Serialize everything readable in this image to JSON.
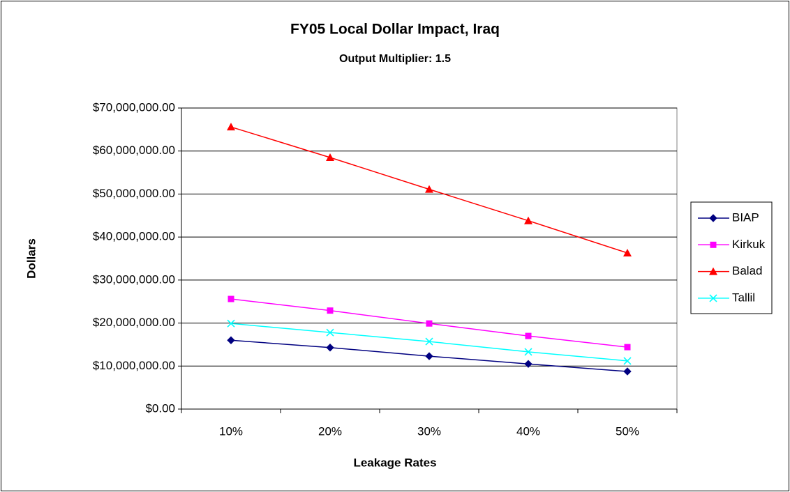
{
  "chart_data": {
    "type": "line",
    "title": "FY05 Local Dollar Impact, Iraq",
    "subtitle": "Output Multiplier: 1.5",
    "xlabel": "Leakage Rates",
    "ylabel": "Dollars",
    "categories": [
      "10%",
      "20%",
      "30%",
      "40%",
      "50%"
    ],
    "series": [
      {
        "name": "BIAP",
        "color": "#000080",
        "marker": "diamond",
        "values": [
          16000000,
          14300000,
          12300000,
          10500000,
          8750000
        ]
      },
      {
        "name": "Kirkuk",
        "color": "#ff00ff",
        "marker": "square",
        "values": [
          25600000,
          22900000,
          19900000,
          17000000,
          14400000
        ]
      },
      {
        "name": "Balad",
        "color": "#ff0000",
        "marker": "triangle",
        "values": [
          65600000,
          58500000,
          51100000,
          43800000,
          36300000
        ]
      },
      {
        "name": "Tallil",
        "color": "#00ffff",
        "marker": "x",
        "values": [
          19900000,
          17800000,
          15700000,
          13300000,
          11200000
        ]
      }
    ],
    "ylim": [
      0,
      70000000
    ],
    "yticks": [
      {
        "value": 0,
        "label": "$0.00"
      },
      {
        "value": 10000000,
        "label": "$10,000,000.00"
      },
      {
        "value": 20000000,
        "label": "$20,000,000.00"
      },
      {
        "value": 30000000,
        "label": "$30,000,000.00"
      },
      {
        "value": 40000000,
        "label": "$40,000,000.00"
      },
      {
        "value": 50000000,
        "label": "$50,000,000.00"
      },
      {
        "value": 60000000,
        "label": "$60,000,000.00"
      },
      {
        "value": 70000000,
        "label": "$70,000,000.00"
      }
    ],
    "grid": true,
    "legend": "right"
  }
}
